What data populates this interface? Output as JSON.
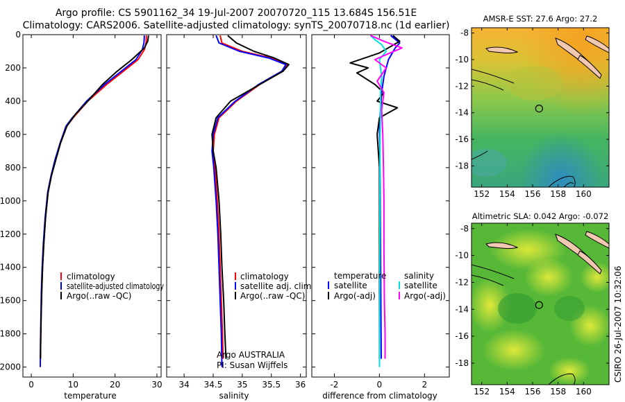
{
  "header": {
    "line1": "Argo profile: CS 5901162_34 19-Jul-2007 20070720_115 13.684S 156.51E",
    "line2": "Climatology: CARS2006. Satellite-adjusted climatology: synTS_20070718.nc (1d earlier)"
  },
  "credit": "CSIRO 26-Jul-2007 10:32:06",
  "chart_data": [
    {
      "id": "temperature",
      "type": "line",
      "xlabel": "temperature",
      "ylabel": "",
      "xlim": [
        -2,
        31
      ],
      "ylim": [
        2060,
        0
      ],
      "xticks": [
        0,
        10,
        20,
        30
      ],
      "yticks": [
        0,
        200,
        400,
        600,
        800,
        1000,
        1200,
        1400,
        1600,
        1800,
        2000
      ],
      "legend": [
        "climatology",
        "satellite-adjusted climatology",
        "Argo(..raw -QC)"
      ],
      "series": [
        {
          "name": "climatology",
          "color": "#ff0000",
          "x": [
            27.5,
            27.4,
            27.0,
            25.5,
            22.0,
            18.0,
            13.5,
            10.0,
            8.5,
            7.0,
            5.8,
            4.8,
            4.0,
            3.4,
            3.0,
            2.7,
            2.5,
            2.35,
            2.25,
            2.2
          ],
          "y": [
            5,
            50,
            90,
            150,
            220,
            300,
            400,
            500,
            550,
            650,
            750,
            850,
            950,
            1100,
            1250,
            1400,
            1550,
            1700,
            1850,
            1950
          ]
        },
        {
          "name": "satellite",
          "color": "#0000ff",
          "x": [
            27.0,
            26.9,
            26.5,
            25.0,
            21.5,
            17.5,
            13.2,
            9.8,
            8.3,
            6.9,
            5.7,
            4.7,
            3.9,
            3.3,
            2.9,
            2.6,
            2.4,
            2.3,
            2.2,
            2.15
          ],
          "y": [
            5,
            50,
            90,
            150,
            220,
            300,
            400,
            500,
            550,
            650,
            750,
            850,
            950,
            1100,
            1250,
            1400,
            1550,
            1700,
            1850,
            2000
          ]
        },
        {
          "name": "argo",
          "color": "#000000",
          "x": [
            28.0,
            27.8,
            27.0,
            24.0,
            20.5,
            17.0,
            13.5,
            10.5,
            8.5,
            7.0,
            5.9,
            4.8,
            4.0,
            3.4,
            3.0,
            2.7,
            2.5,
            2.35,
            2.25,
            2.2
          ],
          "y": [
            5,
            40,
            80,
            150,
            220,
            300,
            400,
            480,
            550,
            650,
            750,
            850,
            950,
            1100,
            1250,
            1400,
            1550,
            1700,
            1850,
            1950
          ]
        }
      ]
    },
    {
      "id": "salinity",
      "type": "line",
      "xlabel": "salinity",
      "xlim": [
        33.7,
        36.1
      ],
      "ylim": [
        2060,
        0
      ],
      "xticks": [
        34,
        34.5,
        35,
        35.5,
        36
      ],
      "legend": [
        "climatology",
        "satellite adj. clim.",
        "Argo(..raw -QC)"
      ],
      "annotation": [
        "Argo AUSTRALIA",
        "PI: Susan Wijffels"
      ],
      "series": [
        {
          "name": "climatology",
          "color": "#ff0000",
          "x": [
            34.62,
            34.65,
            35.0,
            35.5,
            35.78,
            35.7,
            35.3,
            34.9,
            34.6,
            34.52,
            34.5,
            34.53,
            34.57,
            34.6,
            34.62,
            34.64,
            34.66,
            34.67
          ],
          "y": [
            5,
            50,
            100,
            140,
            180,
            220,
            300,
            400,
            500,
            600,
            700,
            800,
            1000,
            1200,
            1400,
            1600,
            1800,
            1950
          ]
        },
        {
          "name": "satellite",
          "color": "#0000ff",
          "x": [
            34.55,
            34.6,
            34.95,
            35.45,
            35.75,
            35.68,
            35.28,
            34.88,
            34.58,
            34.5,
            34.48,
            34.51,
            34.55,
            34.58,
            34.6,
            34.62,
            34.64,
            34.65
          ],
          "y": [
            5,
            50,
            100,
            140,
            180,
            220,
            300,
            400,
            500,
            600,
            700,
            800,
            1000,
            1200,
            1400,
            1600,
            1800,
            2000
          ]
        },
        {
          "name": "argo",
          "color": "#000000",
          "x": [
            34.75,
            34.9,
            35.2,
            35.55,
            35.8,
            35.7,
            35.3,
            34.8,
            34.55,
            34.48,
            34.5,
            34.55,
            34.6,
            34.63,
            34.65,
            34.68,
            34.7,
            34.72
          ],
          "y": [
            5,
            50,
            100,
            140,
            180,
            220,
            300,
            400,
            500,
            600,
            700,
            800,
            1000,
            1200,
            1400,
            1600,
            1800,
            1950
          ]
        }
      ]
    },
    {
      "id": "difference",
      "type": "line",
      "xlabel": "difference from climatology",
      "xlim": [
        -3,
        3.1
      ],
      "ylim": [
        2060,
        0
      ],
      "xticks": [
        -2,
        0,
        2
      ],
      "legend_temperature": {
        "title": "temperature",
        "items": [
          "satellite",
          "Argo(-adj)"
        ]
      },
      "legend_salinity": {
        "title": "salinity",
        "items": [
          "satellite",
          "Argo(-adj)"
        ]
      },
      "series": [
        {
          "name": "temperature satellite",
          "color": "#0000ff",
          "x": [
            0.5,
            0.9,
            0.7,
            0.4,
            0.2,
            0.1,
            0.05,
            0.0,
            0.02,
            0.03,
            0.04,
            0.05,
            0.06,
            0.07,
            0.08
          ],
          "y": [
            5,
            50,
            80,
            150,
            250,
            350,
            450,
            550,
            700,
            900,
            1100,
            1300,
            1500,
            1700,
            1950
          ]
        },
        {
          "name": "temperature argo",
          "color": "#000000",
          "x": [
            0.6,
            0.9,
            0.0,
            -1.3,
            -0.5,
            -1.0,
            -0.2,
            0.2,
            -0.1,
            0.8,
            0.0,
            -0.1,
            0.0,
            0.0,
            0.0,
            0.0,
            0.0
          ],
          "y": [
            5,
            40,
            110,
            170,
            200,
            230,
            300,
            350,
            400,
            440,
            500,
            600,
            800,
            1000,
            1300,
            1600,
            1950
          ]
        },
        {
          "name": "salinity satellite",
          "color": "#00e0e0",
          "x": [
            -0.4,
            -0.2,
            0.1,
            0.3,
            0.0,
            0.1,
            0.05,
            0.05,
            0.03,
            0.02,
            0.02,
            0.01,
            0.0
          ],
          "y": [
            5,
            30,
            60,
            100,
            150,
            250,
            350,
            450,
            600,
            800,
            1200,
            1600,
            2000
          ]
        },
        {
          "name": "salinity argo",
          "color": "#ff00ff",
          "x": [
            -0.4,
            0.2,
            1.0,
            0.3,
            -0.2,
            0.3,
            -0.1,
            0.2,
            0.1,
            0.15,
            0.18,
            0.2,
            0.2,
            0.22,
            0.25,
            0.25
          ],
          "y": [
            5,
            40,
            80,
            120,
            150,
            200,
            280,
            350,
            450,
            600,
            800,
            1000,
            1300,
            1600,
            1800,
            1950
          ]
        }
      ]
    },
    {
      "id": "sst-map",
      "type": "heatmap",
      "title": "AMSR-E SST: 27.6 Argo: 27.2",
      "xticks": [
        152,
        154,
        156,
        158,
        160
      ],
      "yticks": [
        -8,
        -10,
        -12,
        -14,
        -16,
        -18
      ],
      "xlim": [
        151.2,
        162
      ],
      "ylim": [
        -19.6,
        -7.6
      ],
      "argo_position": {
        "lon": 156.51,
        "lat": -13.684
      }
    },
    {
      "id": "sla-map",
      "type": "heatmap",
      "title": "Altimetric SLA: 0.042 Argo: -0.072",
      "xticks": [
        152,
        154,
        156,
        158,
        160
      ],
      "yticks": [
        -8,
        -10,
        -12,
        -14,
        -16,
        -18
      ],
      "xlim": [
        151.2,
        162
      ],
      "ylim": [
        -19.6,
        -7.6
      ],
      "argo_position": {
        "lon": 156.51,
        "lat": -13.684
      }
    }
  ]
}
